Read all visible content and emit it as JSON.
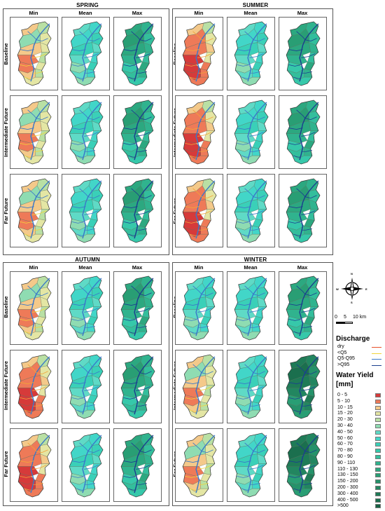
{
  "seasons": {
    "spring": "SPRING",
    "summer": "SUMMER",
    "autumn": "AUTUMN",
    "winter": "WINTER"
  },
  "columns": {
    "min": "Min",
    "mean": "Mean",
    "max": "Max"
  },
  "rows": {
    "baseline": "Baseline",
    "intermediate": "Intermediate Future",
    "far": "Far Future"
  },
  "compass": {
    "n": "N",
    "s": "S",
    "e": "E",
    "w": "W"
  },
  "scale_bar": {
    "labels": [
      "0",
      "5",
      "10 km"
    ]
  },
  "discharge_legend": {
    "title": "Discharge",
    "items": [
      {
        "label": "dry",
        "color": "#e8502a"
      },
      {
        "label": "<Q5",
        "color": "#f2d43a"
      },
      {
        "label": "Q5-Q95",
        "color": "#3a78c8"
      },
      {
        "label": ">Q95",
        "color": "#1b3f8f"
      }
    ]
  },
  "water_yield_legend": {
    "title_line1": "Water Yield",
    "title_line2": "[mm]",
    "items": [
      {
        "label": "0 - 5",
        "color": "#d63a3a"
      },
      {
        "label": "5 - 10",
        "color": "#ee7a58"
      },
      {
        "label": "10 - 15",
        "color": "#f4c98a"
      },
      {
        "label": "15 - 20",
        "color": "#e4e6a4"
      },
      {
        "label": "20 - 30",
        "color": "#b9e0a4"
      },
      {
        "label": "30 - 40",
        "color": "#8fdcb2"
      },
      {
        "label": "40 - 50",
        "color": "#5fdac6"
      },
      {
        "label": "50 - 60",
        "color": "#42d6c8"
      },
      {
        "label": "60 - 70",
        "color": "#3ad0b8"
      },
      {
        "label": "70 - 80",
        "color": "#36c8aa"
      },
      {
        "label": "80 - 90",
        "color": "#33be9c"
      },
      {
        "label": "90 - 110",
        "color": "#30b38e"
      },
      {
        "label": "110 - 130",
        "color": "#2ca880"
      },
      {
        "label": "130 - 150",
        "color": "#299e74"
      },
      {
        "label": "150 - 200",
        "color": "#25926a"
      },
      {
        "label": "200 - 300",
        "color": "#228660"
      },
      {
        "label": "300 - 400",
        "color": "#1f7b57"
      },
      {
        "label": "400 - 500",
        "color": "#1b6f4e"
      },
      {
        "label": ">500",
        "color": "#176244"
      }
    ]
  },
  "maps": {
    "spring": [
      [
        "min_dry",
        "mean",
        "max"
      ],
      [
        "min_dry",
        "mean",
        "max"
      ],
      [
        "min_dry",
        "mean",
        "max"
      ]
    ],
    "summer": [
      [
        "min_vdry",
        "mean",
        "max"
      ],
      [
        "min_vdry",
        "mean",
        "max"
      ],
      [
        "min_vdry",
        "mean",
        "max"
      ]
    ],
    "autumn": [
      [
        "min_dry",
        "mean",
        "max"
      ],
      [
        "min_vdry",
        "mean",
        "max"
      ],
      [
        "min_vdry",
        "mean",
        "max"
      ]
    ],
    "winter": [
      [
        "mean",
        "mean",
        "max"
      ],
      [
        "min_dry",
        "mean",
        "max_wet"
      ],
      [
        "min_dry",
        "mean",
        "max_wet"
      ]
    ]
  }
}
